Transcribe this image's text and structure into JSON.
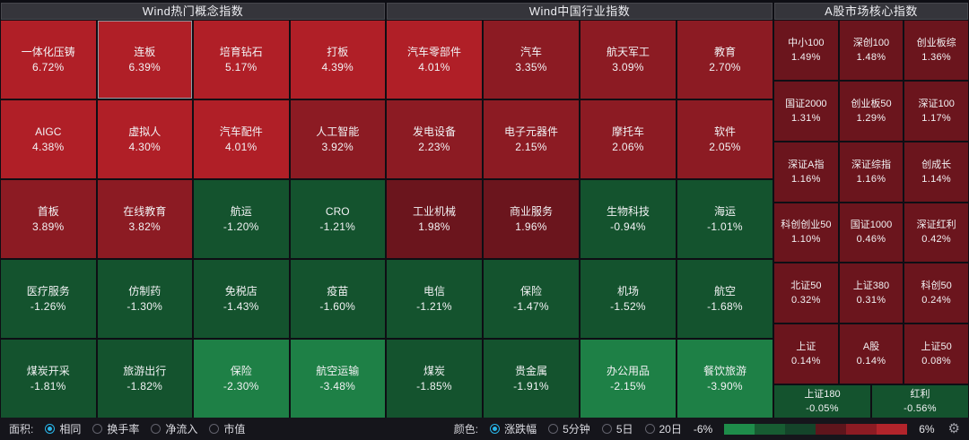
{
  "colors": {
    "accent": "#29b5e8",
    "grid_background": "#0e0e14",
    "header_background": "#35353b",
    "toolbar_background": "#15151b",
    "bins": {
      "up_strong": "#b01f27",
      "up_medium": "#8c1b23",
      "up_weak": "#6b151d",
      "down_weak": "#14532e",
      "down_medium": "#1e8046",
      "down_strong": "#1f9b4e"
    }
  },
  "panels": [
    {
      "title": "Wind热门概念指数",
      "columns": 4,
      "cells": [
        {
          "name": "一体化压铸",
          "pct": "6.72%",
          "value": 6.72,
          "selected": false
        },
        {
          "name": "连板",
          "pct": "6.39%",
          "value": 6.39,
          "selected": true
        },
        {
          "name": "培育钻石",
          "pct": "5.17%",
          "value": 5.17,
          "selected": false
        },
        {
          "name": "打板",
          "pct": "4.39%",
          "value": 4.39,
          "selected": false
        },
        {
          "name": "AIGC",
          "pct": "4.38%",
          "value": 4.38,
          "selected": false
        },
        {
          "name": "虚拟人",
          "pct": "4.30%",
          "value": 4.3,
          "selected": false
        },
        {
          "name": "汽车配件",
          "pct": "4.01%",
          "value": 4.01,
          "selected": false
        },
        {
          "name": "人工智能",
          "pct": "3.92%",
          "value": 3.92,
          "selected": false
        },
        {
          "name": "首板",
          "pct": "3.89%",
          "value": 3.89,
          "selected": false
        },
        {
          "name": "在线教育",
          "pct": "3.82%",
          "value": 3.82,
          "selected": false
        },
        {
          "name": "航运",
          "pct": "-1.20%",
          "value": -1.2,
          "selected": false
        },
        {
          "name": "CRO",
          "pct": "-1.21%",
          "value": -1.21,
          "selected": false
        },
        {
          "name": "医疗服务",
          "pct": "-1.26%",
          "value": -1.26,
          "selected": false
        },
        {
          "name": "仿制药",
          "pct": "-1.30%",
          "value": -1.3,
          "selected": false
        },
        {
          "name": "免税店",
          "pct": "-1.43%",
          "value": -1.43,
          "selected": false
        },
        {
          "name": "疫苗",
          "pct": "-1.60%",
          "value": -1.6,
          "selected": false
        },
        {
          "name": "煤炭开采",
          "pct": "-1.81%",
          "value": -1.81,
          "selected": false
        },
        {
          "name": "旅游出行",
          "pct": "-1.82%",
          "value": -1.82,
          "selected": false
        },
        {
          "name": "保险",
          "pct": "-2.30%",
          "value": -2.3,
          "selected": false
        },
        {
          "name": "航空运输",
          "pct": "-3.48%",
          "value": -3.48,
          "selected": false
        }
      ]
    },
    {
      "title": "Wind中国行业指数",
      "columns": 4,
      "cells": [
        {
          "name": "汽车零部件",
          "pct": "4.01%",
          "value": 4.01,
          "selected": false
        },
        {
          "name": "汽车",
          "pct": "3.35%",
          "value": 3.35,
          "selected": false
        },
        {
          "name": "航天军工",
          "pct": "3.09%",
          "value": 3.09,
          "selected": false
        },
        {
          "name": "教育",
          "pct": "2.70%",
          "value": 2.7,
          "selected": false
        },
        {
          "name": "发电设备",
          "pct": "2.23%",
          "value": 2.23,
          "selected": false
        },
        {
          "name": "电子元器件",
          "pct": "2.15%",
          "value": 2.15,
          "selected": false
        },
        {
          "name": "摩托车",
          "pct": "2.06%",
          "value": 2.06,
          "selected": false
        },
        {
          "name": "软件",
          "pct": "2.05%",
          "value": 2.05,
          "selected": false
        },
        {
          "name": "工业机械",
          "pct": "1.98%",
          "value": 1.98,
          "selected": false
        },
        {
          "name": "商业服务",
          "pct": "1.96%",
          "value": 1.96,
          "selected": false
        },
        {
          "name": "生物科技",
          "pct": "-0.94%",
          "value": -0.94,
          "selected": false
        },
        {
          "name": "海运",
          "pct": "-1.01%",
          "value": -1.01,
          "selected": false
        },
        {
          "name": "电信",
          "pct": "-1.21%",
          "value": -1.21,
          "selected": false
        },
        {
          "name": "保险",
          "pct": "-1.47%",
          "value": -1.47,
          "selected": false
        },
        {
          "name": "机场",
          "pct": "-1.52%",
          "value": -1.52,
          "selected": false
        },
        {
          "name": "航空",
          "pct": "-1.68%",
          "value": -1.68,
          "selected": false
        },
        {
          "name": "煤炭",
          "pct": "-1.85%",
          "value": -1.85,
          "selected": false
        },
        {
          "name": "贵金属",
          "pct": "-1.91%",
          "value": -1.91,
          "selected": false
        },
        {
          "name": "办公用品",
          "pct": "-2.15%",
          "value": -2.15,
          "selected": false
        },
        {
          "name": "餐饮旅游",
          "pct": "-3.90%",
          "value": -3.9,
          "selected": false
        }
      ]
    },
    {
      "title": "A股市场核心指数",
      "columns": 3,
      "cells": [
        {
          "name": "中小100",
          "pct": "1.49%",
          "value": 1.49,
          "selected": false
        },
        {
          "name": "深创100",
          "pct": "1.48%",
          "value": 1.48,
          "selected": false
        },
        {
          "name": "创业板综",
          "pct": "1.36%",
          "value": 1.36,
          "selected": false
        },
        {
          "name": "国证2000",
          "pct": "1.31%",
          "value": 1.31,
          "selected": false
        },
        {
          "name": "创业板50",
          "pct": "1.29%",
          "value": 1.29,
          "selected": false
        },
        {
          "name": "深证100",
          "pct": "1.17%",
          "value": 1.17,
          "selected": false
        },
        {
          "name": "深证A指",
          "pct": "1.16%",
          "value": 1.16,
          "selected": false
        },
        {
          "name": "深证综指",
          "pct": "1.16%",
          "value": 1.16,
          "selected": false
        },
        {
          "name": "创成长",
          "pct": "1.14%",
          "value": 1.14,
          "selected": false
        },
        {
          "name": "科创创业50",
          "pct": "1.10%",
          "value": 1.1,
          "selected": false
        },
        {
          "name": "国证1000",
          "pct": "0.46%",
          "value": 0.46,
          "selected": false
        },
        {
          "name": "深证红利",
          "pct": "0.42%",
          "value": 0.42,
          "selected": false
        },
        {
          "name": "北证50",
          "pct": "0.32%",
          "value": 0.32,
          "selected": false
        },
        {
          "name": "上证380",
          "pct": "0.31%",
          "value": 0.31,
          "selected": false
        },
        {
          "name": "科创50",
          "pct": "0.24%",
          "value": 0.24,
          "selected": false
        },
        {
          "name": "上证",
          "pct": "0.14%",
          "value": 0.14,
          "selected": false
        },
        {
          "name": "A股",
          "pct": "0.14%",
          "value": 0.14,
          "selected": false
        },
        {
          "name": "上证50",
          "pct": "0.08%",
          "value": 0.08,
          "selected": false
        }
      ],
      "bottom_cells": [
        {
          "name": "上证180",
          "pct": "-0.05%",
          "value": -0.05,
          "selected": false
        },
        {
          "name": "红利",
          "pct": "-0.56%",
          "value": -0.56,
          "selected": false
        }
      ]
    }
  ],
  "toolbar": {
    "area_label": "面积:",
    "area_options": [
      {
        "label": "相同",
        "selected": true
      },
      {
        "label": "换手率",
        "selected": false
      },
      {
        "label": "净流入",
        "selected": false
      },
      {
        "label": "市值",
        "selected": false
      }
    ],
    "color_label": "颜色:",
    "color_options": [
      {
        "label": "涨跌幅",
        "selected": true
      },
      {
        "label": "5分钟",
        "selected": false
      },
      {
        "label": "5日",
        "selected": false
      },
      {
        "label": "20日",
        "selected": false
      }
    ],
    "scale_min": "-6%",
    "scale_max": "6%",
    "legend_colors": [
      "#1e8c4a",
      "#175c32",
      "#14442a",
      "#5e151c",
      "#8c1b23",
      "#b2242b"
    ],
    "gear_icon": "⚙"
  }
}
